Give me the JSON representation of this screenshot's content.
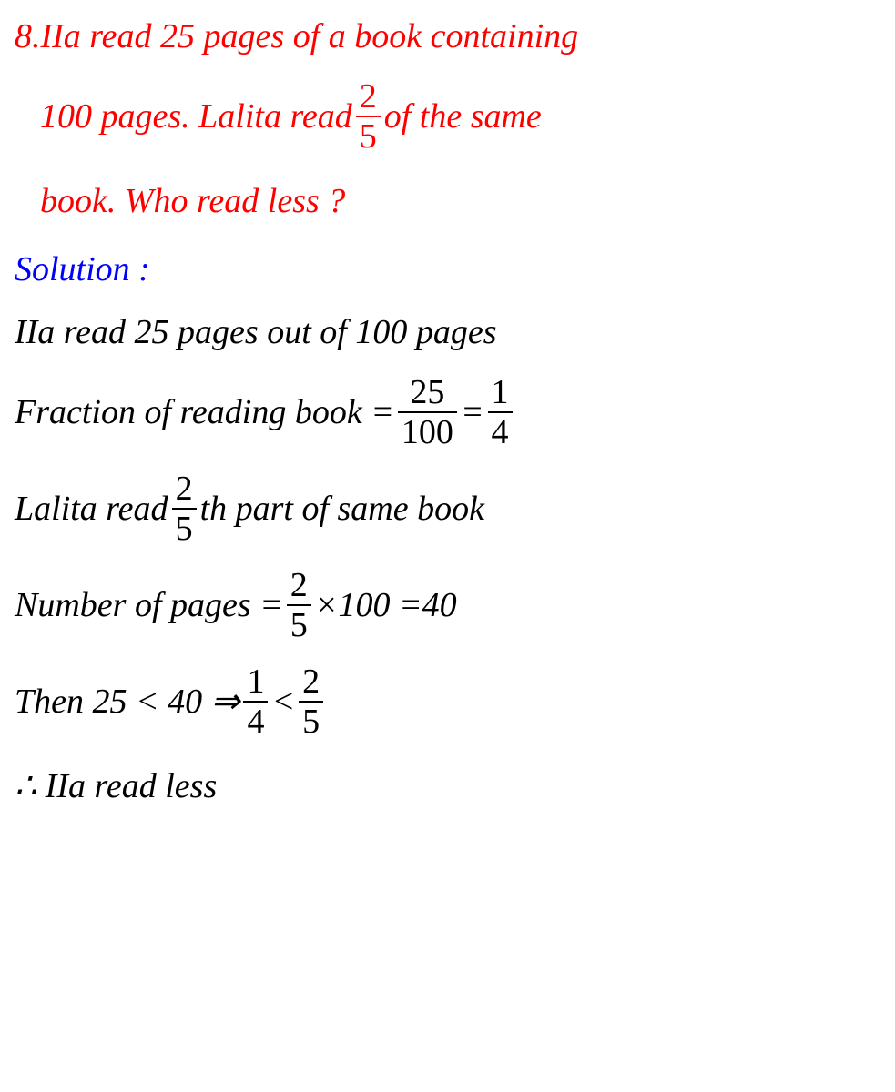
{
  "colors": {
    "question": "#ff0000",
    "solution_label": "#0000ff",
    "body": "#000000",
    "background": "#ffffff"
  },
  "typography": {
    "font_family": "Times New Roman",
    "font_style": "italic",
    "base_fontsize_pt": 28
  },
  "question": {
    "line1_pre": "8.IIa read 25 pages of a book containing",
    "line2_pre": "100 pages. Lalita read ",
    "line2_frac_num": "2",
    "line2_frac_den": "5",
    "line2_post": " of the same",
    "line3": "book. Who read less ?"
  },
  "solution_label": "Solution :",
  "solution": {
    "s1": "IIa read 25 pages out of 100 pages",
    "s2_pre": "Fraction of reading book = ",
    "s2_frac1_num": "25",
    "s2_frac1_den": "100",
    "s2_mid": " = ",
    "s2_frac2_num": "1",
    "s2_frac2_den": "4",
    "s3_pre": "Lalita read ",
    "s3_frac_num": "2",
    "s3_frac_den": "5",
    "s3_post": " th part of same book",
    "s4_pre": "Number of pages = ",
    "s4_frac_num": "2",
    "s4_frac_den": "5",
    "s4_post": "×100 =40",
    "s5_pre": "Then 25 < 40  ⇒  ",
    "s5_frac1_num": "1",
    "s5_frac1_den": "4",
    "s5_mid": " < ",
    "s5_frac2_num": "2",
    "s5_frac2_den": "5",
    "s6": "∴  IIa read less"
  }
}
